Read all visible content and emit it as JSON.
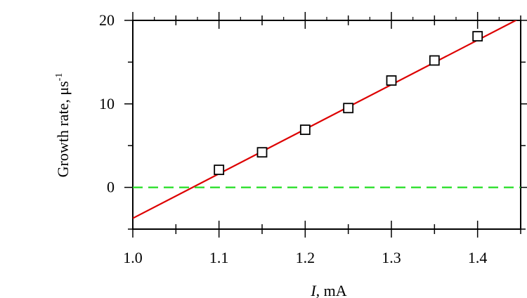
{
  "chart_data": {
    "type": "scatter",
    "title": "",
    "xlabel_var": "I",
    "xlabel_rest": ", mA",
    "ylabel_main": "Growth rate, μs",
    "ylabel_sup": "-1",
    "xlim": [
      1.0,
      1.45
    ],
    "ylim": [
      -5,
      20
    ],
    "x_ticks": [
      1.0,
      1.1,
      1.2,
      1.3,
      1.4
    ],
    "x_tick_labels": [
      "1.0",
      "1.1",
      "1.2",
      "1.3",
      "1.4"
    ],
    "y_ticks": [
      0,
      10,
      20
    ],
    "y_tick_labels": [
      "0",
      "10",
      "20"
    ],
    "grid": false,
    "series": [
      {
        "kind": "points",
        "marker": "open-square",
        "color": "#000000",
        "x": [
          1.1,
          1.15,
          1.2,
          1.25,
          1.3,
          1.35,
          1.4
        ],
        "y": [
          2.1,
          4.2,
          6.9,
          9.5,
          12.8,
          15.2,
          18.1
        ]
      },
      {
        "kind": "line",
        "style": "solid",
        "color": "#dd0000",
        "x": [
          1.0,
          1.45
        ],
        "y": [
          -3.7,
          20.3
        ]
      },
      {
        "kind": "line",
        "style": "dashed",
        "color": "#22dd22",
        "x": [
          1.0,
          1.45
        ],
        "y": [
          0,
          0
        ]
      }
    ]
  }
}
